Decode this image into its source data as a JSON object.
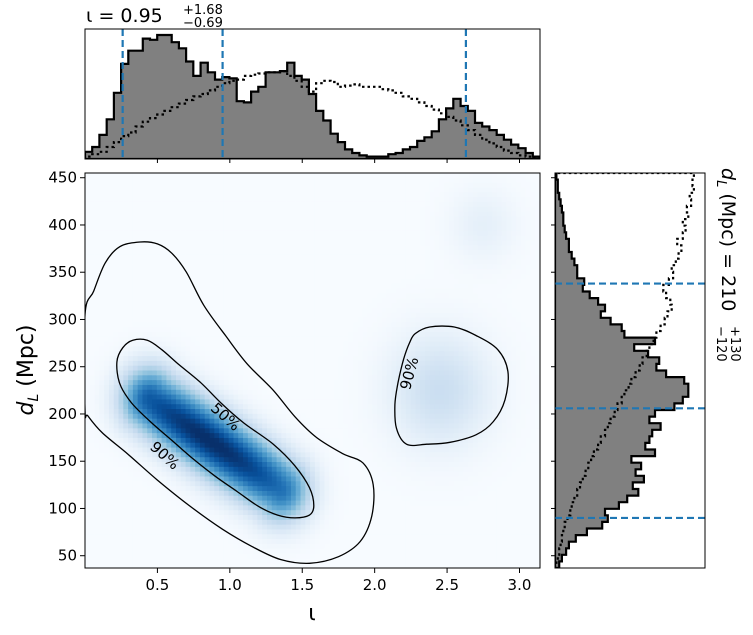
{
  "chart_data": {
    "type": "heatmap",
    "title_top": {
      "symbol": "ι",
      "text": " = 0.95",
      "plus": "+1.68",
      "minus": "−0.69"
    },
    "title_right": {
      "symbol": "d",
      "sub": "L",
      "text": " (Mpc) = 210",
      "plus": "+130",
      "minus": "−120"
    },
    "xlabel": "ι",
    "ylabel": {
      "symbol": "d",
      "sub": "L",
      "unit": " (Mpc)"
    },
    "xlim": [
      0.0,
      3.1416
    ],
    "ylim": [
      37,
      455
    ],
    "xticks": [
      0.5,
      1.0,
      1.5,
      2.0,
      2.5,
      3.0
    ],
    "xtick_labels": [
      "0.5",
      "1.0",
      "1.5",
      "2.0",
      "2.5",
      "3.0"
    ],
    "yticks": [
      50,
      100,
      150,
      200,
      250,
      300,
      350,
      400,
      450
    ],
    "ytick_labels": [
      "50",
      "100",
      "150",
      "200",
      "250",
      "300",
      "350",
      "400",
      "450"
    ],
    "colormap": "Blues",
    "density_modes": [
      {
        "x": [
          0.45,
          1.35
        ],
        "y": [
          215,
          120
        ],
        "width": 0.13,
        "height": 22,
        "weight": 1.0
      },
      {
        "x": 2.45,
        "y": 225,
        "sx": 0.22,
        "sy": 38,
        "weight": 0.18
      },
      {
        "x": 2.75,
        "y": 400,
        "sx": 0.15,
        "sy": 25,
        "weight": 0.06
      }
    ],
    "contours": [
      {
        "label": "50%",
        "label_pos": [
          0.97,
          197
        ],
        "points": [
          [
            0.22,
            255
          ],
          [
            0.26,
            270
          ],
          [
            0.33,
            278
          ],
          [
            0.43,
            278
          ],
          [
            0.53,
            268
          ],
          [
            0.65,
            252
          ],
          [
            0.8,
            233
          ],
          [
            0.95,
            210
          ],
          [
            1.1,
            190
          ],
          [
            1.3,
            168
          ],
          [
            1.45,
            145
          ],
          [
            1.55,
            122
          ],
          [
            1.58,
            103
          ],
          [
            1.55,
            93
          ],
          [
            1.45,
            90
          ],
          [
            1.33,
            93
          ],
          [
            1.2,
            102
          ],
          [
            1.05,
            118
          ],
          [
            0.9,
            134
          ],
          [
            0.75,
            152
          ],
          [
            0.6,
            172
          ],
          [
            0.45,
            192
          ],
          [
            0.32,
            212
          ],
          [
            0.24,
            232
          ]
        ]
      },
      {
        "label": "90%",
        "label_pos": [
          0.55,
          156
        ],
        "points": [
          [
            0.0,
            305
          ],
          [
            0.06,
            330
          ],
          [
            0.14,
            360
          ],
          [
            0.24,
            377
          ],
          [
            0.38,
            382
          ],
          [
            0.5,
            380
          ],
          [
            0.6,
            370
          ],
          [
            0.7,
            350
          ],
          [
            0.82,
            315
          ],
          [
            0.97,
            283
          ],
          [
            1.12,
            253
          ],
          [
            1.3,
            225
          ],
          [
            1.45,
            197
          ],
          [
            1.6,
            175
          ],
          [
            1.78,
            158
          ],
          [
            1.92,
            148
          ],
          [
            1.99,
            125
          ],
          [
            1.98,
            92
          ],
          [
            1.9,
            65
          ],
          [
            1.75,
            49
          ],
          [
            1.55,
            42
          ],
          [
            1.35,
            46
          ],
          [
            1.15,
            60
          ],
          [
            0.95,
            78
          ],
          [
            0.72,
            103
          ],
          [
            0.5,
            130
          ],
          [
            0.3,
            157
          ],
          [
            0.12,
            180
          ],
          [
            0.02,
            198
          ],
          [
            0.0,
            205
          ]
        ]
      },
      {
        "label": "90%",
        "label_pos": [
          2.24,
          243
        ],
        "points": [
          [
            2.28,
            285
          ],
          [
            2.38,
            292
          ],
          [
            2.55,
            292
          ],
          [
            2.7,
            283
          ],
          [
            2.85,
            268
          ],
          [
            2.92,
            245
          ],
          [
            2.9,
            215
          ],
          [
            2.82,
            192
          ],
          [
            2.7,
            178
          ],
          [
            2.52,
            170
          ],
          [
            2.36,
            168
          ],
          [
            2.22,
            168
          ],
          [
            2.15,
            185
          ],
          [
            2.14,
            210
          ],
          [
            2.16,
            232
          ],
          [
            2.2,
            258
          ],
          [
            2.24,
            275
          ]
        ]
      }
    ],
    "marginal_iota": {
      "bin_edges": [
        0.0,
        3.1416
      ],
      "posterior": [
        0.06,
        0.1,
        0.2,
        0.33,
        0.55,
        0.79,
        0.9,
        0.9,
        1.0,
        0.99,
        1.03,
        1.03,
        0.97,
        0.92,
        0.81,
        0.69,
        0.8,
        0.72,
        0.66,
        0.68,
        0.67,
        0.48,
        0.47,
        0.56,
        0.6,
        0.72,
        0.72,
        0.73,
        0.8,
        0.69,
        0.66,
        0.54,
        0.4,
        0.32,
        0.21,
        0.14,
        0.08,
        0.05,
        0.03,
        0.02,
        0.02,
        0.02,
        0.04,
        0.05,
        0.08,
        0.1,
        0.15,
        0.18,
        0.23,
        0.33,
        0.42,
        0.5,
        0.44,
        0.4,
        0.3,
        0.27,
        0.24,
        0.2,
        0.16,
        0.12,
        0.09,
        0.05,
        0.02
      ],
      "prior": [
        0.02,
        0.04,
        0.06,
        0.1,
        0.14,
        0.19,
        0.22,
        0.27,
        0.31,
        0.34,
        0.37,
        0.4,
        0.43,
        0.46,
        0.49,
        0.52,
        0.54,
        0.57,
        0.6,
        0.63,
        0.65,
        0.66,
        0.69,
        0.7,
        0.71,
        0.72,
        0.72,
        0.73,
        0.69,
        0.65,
        0.6,
        0.56,
        0.63,
        0.65,
        0.64,
        0.6,
        0.61,
        0.62,
        0.6,
        0.6,
        0.6,
        0.58,
        0.57,
        0.55,
        0.52,
        0.5,
        0.47,
        0.44,
        0.41,
        0.38,
        0.35,
        0.32,
        0.28,
        0.24,
        0.2,
        0.16,
        0.13,
        0.1,
        0.07,
        0.05,
        0.03,
        0.02,
        0.01
      ],
      "quantile_lines": [
        0.26,
        0.95,
        2.63
      ]
    },
    "marginal_dl": {
      "bin_edges": [
        37,
        455
      ],
      "posterior": [
        0.03,
        0.05,
        0.08,
        0.1,
        0.15,
        0.23,
        0.34,
        0.38,
        0.36,
        0.46,
        0.52,
        0.6,
        0.56,
        0.64,
        0.58,
        0.62,
        0.55,
        0.72,
        0.65,
        0.68,
        0.7,
        0.76,
        0.68,
        0.72,
        0.86,
        0.92,
        0.96,
        0.96,
        0.93,
        0.8,
        0.73,
        0.75,
        0.67,
        0.57,
        0.72,
        0.5,
        0.48,
        0.4,
        0.33,
        0.36,
        0.31,
        0.25,
        0.2,
        0.21,
        0.16,
        0.16,
        0.14,
        0.12,
        0.1,
        0.1,
        0.08,
        0.07,
        0.06,
        0.06,
        0.05,
        0.04,
        0.03,
        0.02,
        0.02,
        0.01
      ],
      "prior": [
        0.01,
        0.02,
        0.03,
        0.04,
        0.05,
        0.06,
        0.07,
        0.09,
        0.11,
        0.12,
        0.14,
        0.16,
        0.18,
        0.2,
        0.22,
        0.24,
        0.26,
        0.28,
        0.31,
        0.33,
        0.36,
        0.38,
        0.4,
        0.43,
        0.45,
        0.48,
        0.5,
        0.53,
        0.55,
        0.58,
        0.61,
        0.63,
        0.66,
        0.68,
        0.71,
        0.73,
        0.76,
        0.79,
        0.81,
        0.84,
        0.83,
        0.8,
        0.78,
        0.82,
        0.85,
        0.84,
        0.87,
        0.89,
        0.91,
        0.88,
        0.92,
        0.94,
        0.92,
        0.96,
        0.95,
        0.98,
        0.97,
        1.0,
        0.99,
        1.0
      ],
      "quantile_lines": [
        90,
        206,
        338
      ]
    }
  },
  "colors": {
    "hist_fill": "#808080",
    "hist_edge": "#000000",
    "quantile_line": "#1f77b4",
    "contour": "#000000",
    "cmap_low": "#f7fbff",
    "cmap_high": "#08306b"
  }
}
